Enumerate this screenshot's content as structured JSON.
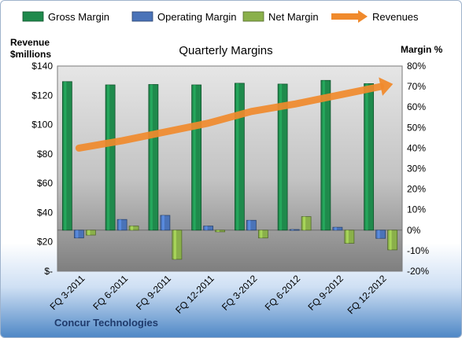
{
  "company": "Concur Technologies",
  "chart_data": {
    "type": "bar",
    "title": "Quarterly Margins",
    "left_axis_title": [
      "Revenue",
      "$millions"
    ],
    "right_axis_title": "Margin %",
    "categories": [
      "FQ 3-2011",
      "FQ 6-2011",
      "FQ 9-2011",
      "FQ 12-2011",
      "FQ 3-2012",
      "FQ 6-2012",
      "FQ 9-2012",
      "FQ 12-2012"
    ],
    "left_ticks": [
      "$140",
      "$120",
      "$100",
      "$80",
      "$60",
      "$40",
      "$20",
      "$-"
    ],
    "right_ticks": [
      "80%",
      "70%",
      "60%",
      "50%",
      "40%",
      "30%",
      "20%",
      "10%",
      "0%",
      "-10%",
      "-20%"
    ],
    "left_range": [
      0,
      140
    ],
    "right_range": [
      -20,
      80
    ],
    "legend_placement": "top",
    "series": [
      {
        "name": "Gross Margin",
        "axis": "right",
        "kind": "bar",
        "color": "#1f8a4c",
        "values": [
          72.4,
          70.8,
          71.0,
          70.8,
          71.6,
          71.2,
          73.0,
          71.4
        ]
      },
      {
        "name": "Operating Margin",
        "axis": "right",
        "kind": "bar",
        "color": "#4a73b8",
        "values": [
          -3.8,
          5.2,
          7.2,
          2.0,
          4.8,
          0.3,
          1.4,
          -4.0
        ]
      },
      {
        "name": "Net Margin",
        "axis": "right",
        "kind": "bar",
        "color": "#8ab04a",
        "values": [
          -2.4,
          2.0,
          -14.2,
          -0.8,
          -3.8,
          6.6,
          -6.4,
          -9.6
        ]
      },
      {
        "name": "Revenues",
        "axis": "left",
        "kind": "line",
        "color": "#f08a2c",
        "values": [
          84,
          89,
          95,
          101,
          109,
          114,
          120,
          126
        ]
      }
    ]
  }
}
